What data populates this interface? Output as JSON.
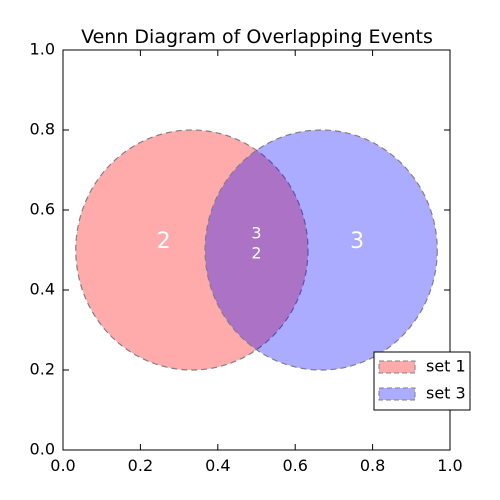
{
  "chart_data": {
    "type": "venn",
    "title": "Venn Diagram of Overlapping Events",
    "xlim": [
      0,
      1
    ],
    "ylim": [
      0,
      1
    ],
    "xticks": [
      "0.0",
      "0.2",
      "0.4",
      "0.6",
      "0.8",
      "1.0"
    ],
    "yticks": [
      "0.0",
      "0.2",
      "0.4",
      "0.6",
      "0.8",
      "1.0"
    ],
    "grid": false,
    "legend_position": "lower-right",
    "sets": [
      {
        "name": "set 1",
        "center": [
          0.333,
          0.5
        ],
        "radius": 0.3,
        "color": "#ff0000",
        "opacity": 0.33
      },
      {
        "name": "set 3",
        "center": [
          0.667,
          0.5
        ],
        "radius": 0.3,
        "color": "#0000ff",
        "opacity": 0.33
      }
    ],
    "regions": [
      {
        "id": "set1-only",
        "label": "2",
        "position": [
          0.26,
          0.52
        ]
      },
      {
        "id": "intersection-top",
        "label": "3",
        "position": [
          0.5,
          0.54
        ]
      },
      {
        "id": "intersection-bottom",
        "label": "2",
        "position": [
          0.5,
          0.49
        ]
      },
      {
        "id": "set3-only",
        "label": "3",
        "position": [
          0.76,
          0.52
        ]
      }
    ],
    "outline_style": "dashed",
    "outline_color": "#808080"
  }
}
